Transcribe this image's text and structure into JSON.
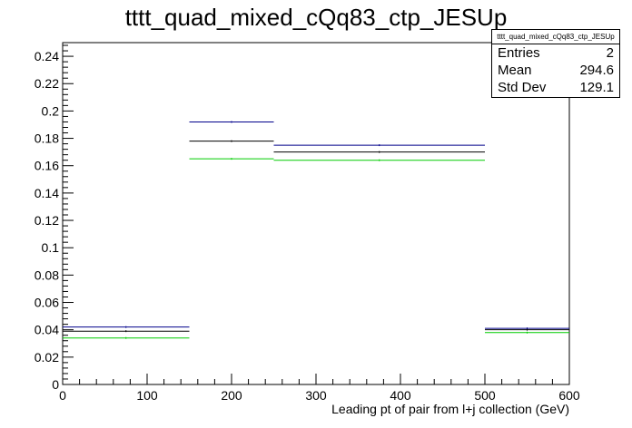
{
  "chart_data": {
    "type": "histogram",
    "title": "tttt_quad_mixed_cQq83_ctp_JESUp",
    "xlabel": "Leading pt of pair from l+j collection (GeV)",
    "ylabel": "",
    "xlim": [
      0,
      600
    ],
    "ylim": [
      0,
      0.25
    ],
    "x_ticks": [
      0,
      100,
      200,
      300,
      400,
      500,
      600
    ],
    "y_ticks": [
      0,
      0.02,
      0.04,
      0.06,
      0.08,
      0.1,
      0.12,
      0.14,
      0.16,
      0.18,
      0.2,
      0.22,
      0.24
    ],
    "bin_edges": [
      0,
      150,
      250,
      500,
      600
    ],
    "grid": false,
    "series": [
      {
        "color": "#00008b",
        "values": [
          0.042,
          0.192,
          0.175,
          0.041
        ]
      },
      {
        "color": "#000000",
        "values": [
          0.039,
          0.178,
          0.17,
          0.04
        ]
      },
      {
        "color": "#00cc00",
        "values": [
          0.034,
          0.165,
          0.164,
          0.038
        ]
      }
    ]
  },
  "stats": {
    "title": "tttt_quad_mixed_cQq83_ctp_JESUp",
    "rows": [
      {
        "label": "Entries",
        "value": "2"
      },
      {
        "label": "Mean",
        "value": "294.6"
      },
      {
        "label": "Std Dev",
        "value": "129.1"
      }
    ]
  }
}
